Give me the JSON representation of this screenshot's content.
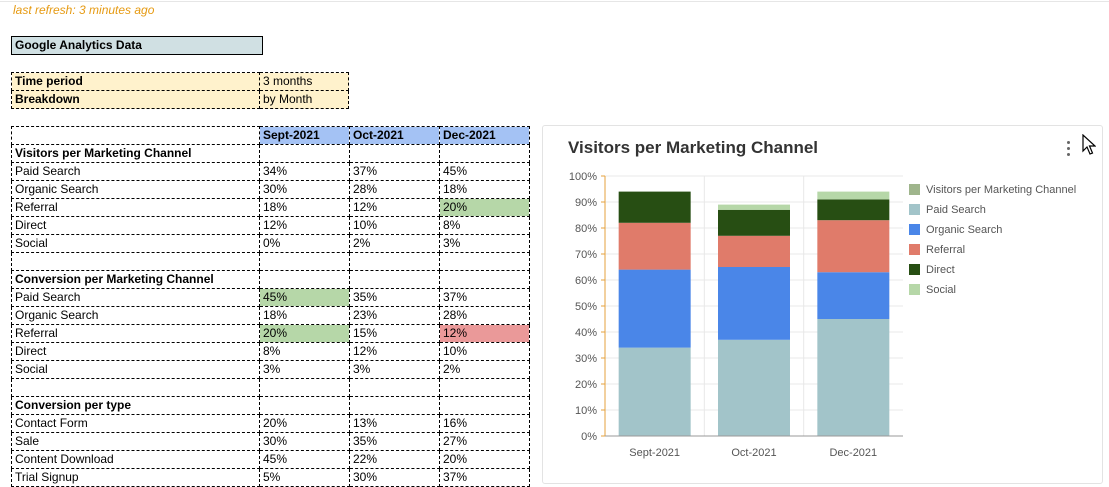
{
  "refresh_text": "last refresh: 3 minutes ago",
  "sheet_title": "Google Analytics Data",
  "params": [
    {
      "label": "Time period",
      "value": "3 months"
    },
    {
      "label": "Breakdown",
      "value": "by Month"
    }
  ],
  "months": [
    "Sept-2021",
    "Oct-2021",
    "Dec-2021"
  ],
  "sections": [
    {
      "title": "Visitors per Marketing Channel",
      "rows": [
        {
          "label": "Paid Search",
          "values": [
            "34%",
            "37%",
            "45%"
          ],
          "highlight": [
            "",
            "",
            ""
          ]
        },
        {
          "label": "Organic Search",
          "values": [
            "30%",
            "28%",
            "18%"
          ],
          "highlight": [
            "",
            "",
            ""
          ]
        },
        {
          "label": "Referral",
          "values": [
            "18%",
            "12%",
            "20%"
          ],
          "highlight": [
            "",
            "",
            "green"
          ]
        },
        {
          "label": "Direct",
          "values": [
            "12%",
            "10%",
            "8%"
          ],
          "highlight": [
            "",
            "",
            ""
          ]
        },
        {
          "label": "Social",
          "values": [
            "0%",
            "2%",
            "3%"
          ],
          "highlight": [
            "",
            "",
            ""
          ]
        }
      ]
    },
    {
      "title": "Conversion per Marketing Channel",
      "rows": [
        {
          "label": "Paid Search",
          "values": [
            "45%",
            "35%",
            "37%"
          ],
          "highlight": [
            "green",
            "",
            ""
          ]
        },
        {
          "label": "Organic Search",
          "values": [
            "18%",
            "23%",
            "28%"
          ],
          "highlight": [
            "",
            "",
            ""
          ]
        },
        {
          "label": "Referral",
          "values": [
            "20%",
            "15%",
            "12%"
          ],
          "highlight": [
            "green",
            "",
            "red"
          ]
        },
        {
          "label": "Direct",
          "values": [
            "8%",
            "12%",
            "10%"
          ],
          "highlight": [
            "",
            "",
            ""
          ]
        },
        {
          "label": "Social",
          "values": [
            "3%",
            "3%",
            "2%"
          ],
          "highlight": [
            "",
            "",
            ""
          ]
        }
      ]
    },
    {
      "title": "Conversion per type",
      "rows": [
        {
          "label": "Contact Form",
          "values": [
            "20%",
            "13%",
            "16%"
          ],
          "highlight": [
            "",
            "",
            ""
          ]
        },
        {
          "label": "Sale",
          "values": [
            "30%",
            "35%",
            "27%"
          ],
          "highlight": [
            "",
            "",
            ""
          ]
        },
        {
          "label": "Content Download",
          "values": [
            "45%",
            "22%",
            "20%"
          ],
          "highlight": [
            "",
            "",
            ""
          ]
        },
        {
          "label": "Trial Signup",
          "values": [
            "5%",
            "30%",
            "37%"
          ],
          "highlight": [
            "",
            "",
            ""
          ]
        }
      ]
    }
  ],
  "chart_data": {
    "type": "bar",
    "stacked": true,
    "title": "Visitors per Marketing Channel",
    "categories": [
      "Sept-2021",
      "Oct-2021",
      "Dec-2021"
    ],
    "series": [
      {
        "name": "Paid Search",
        "color": "#a2c4c9",
        "values": [
          34,
          37,
          45
        ]
      },
      {
        "name": "Organic Search",
        "color": "#4a86e8",
        "values": [
          30,
          28,
          18
        ]
      },
      {
        "name": "Referral",
        "color": "#e07b6a",
        "values": [
          18,
          12,
          20
        ]
      },
      {
        "name": "Direct",
        "color": "#274e13",
        "values": [
          12,
          10,
          8
        ]
      },
      {
        "name": "Social",
        "color": "#b6d7a8",
        "values": [
          0,
          2,
          3
        ]
      }
    ],
    "legend": [
      {
        "name": "Visitors per Marketing Channel",
        "color": "#9fb58c"
      },
      {
        "name": "Paid Search",
        "color": "#a2c4c9"
      },
      {
        "name": "Organic Search",
        "color": "#4a86e8"
      },
      {
        "name": "Referral",
        "color": "#e07b6a"
      },
      {
        "name": "Direct",
        "color": "#274e13"
      },
      {
        "name": "Social",
        "color": "#b6d7a8"
      }
    ],
    "legend_position": "right",
    "yticks": [
      "0%",
      "10%",
      "20%",
      "30%",
      "40%",
      "50%",
      "60%",
      "70%",
      "80%",
      "90%",
      "100%"
    ],
    "ylim": [
      0,
      100
    ],
    "grid": true
  }
}
